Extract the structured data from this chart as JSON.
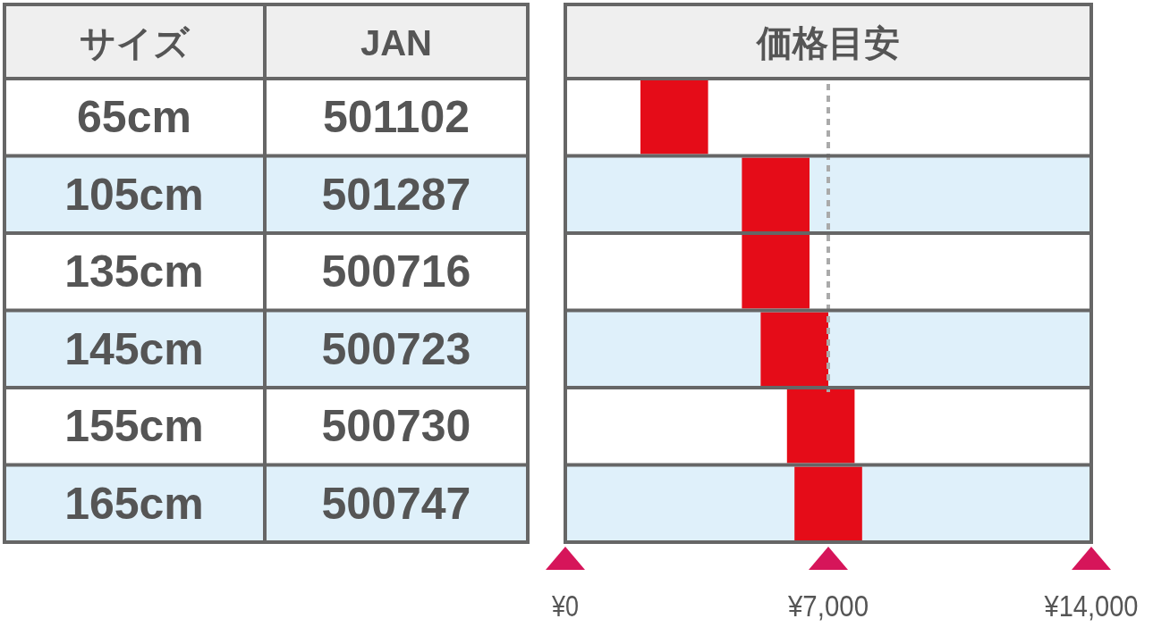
{
  "chart_data": {
    "type": "bar",
    "orientation": "horizontal",
    "title": "価格目安",
    "ylabel": "JAN",
    "categories": [
      "501102",
      "501287",
      "500716",
      "500723",
      "500730",
      "500747"
    ],
    "base": [
      2000,
      4700,
      4700,
      5200,
      5900,
      6100
    ],
    "values": [
      1800,
      1800,
      1800,
      1800,
      1800,
      1800
    ],
    "color": "#e50c18",
    "xlim": [
      0,
      14000
    ],
    "xticks": [
      {
        "value": 0,
        "label": "¥0"
      },
      {
        "value": 7000,
        "label": "¥7,000"
      },
      {
        "value": 14000,
        "label": "¥14,000"
      }
    ],
    "ref_lines": [
      {
        "axis": "x",
        "value": 7000,
        "color": "#aaaaaa",
        "line_style": "dashed"
      }
    ],
    "annotations": [
      "サイズ",
      "65cm",
      "105cm",
      "135cm",
      "145cm",
      "155cm",
      "165cm"
    ]
  }
}
